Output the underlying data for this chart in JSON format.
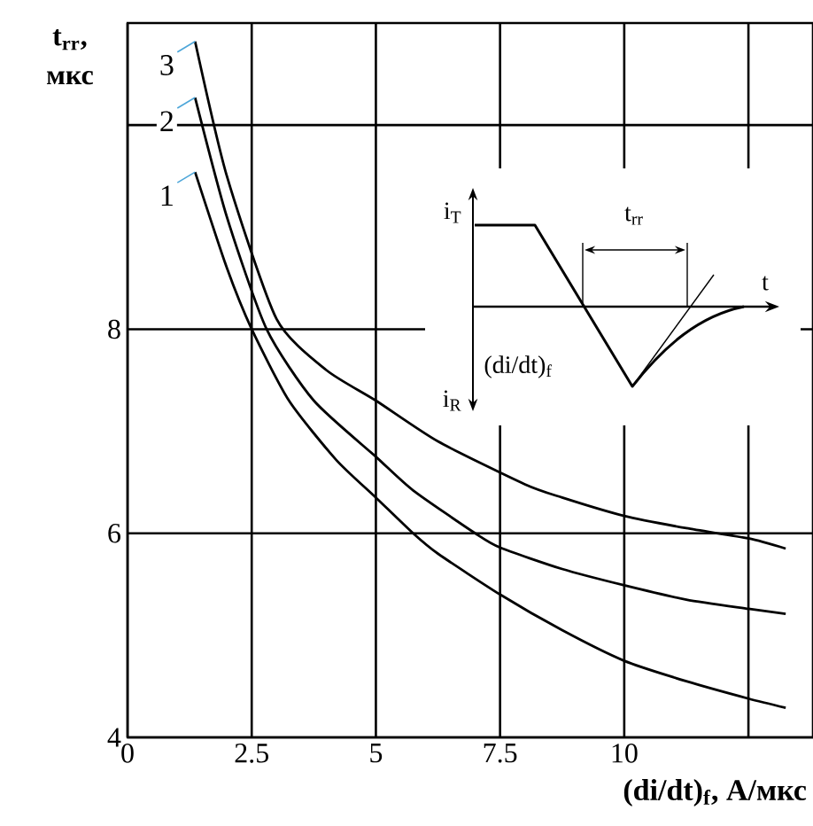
{
  "chart_data": {
    "type": "line",
    "xlabel": "(di/dt)$_{f}$, А/мкс",
    "ylabel": "t$_{rr}$, мкс",
    "xlim": [
      0,
      13.8
    ],
    "ylim": [
      4,
      11
    ],
    "xticks": [
      0,
      2.5,
      5,
      7.5,
      10,
      {
        "value": 12.5,
        "label": null
      }
    ],
    "yticks": [
      4,
      6,
      8,
      {
        "value": 10,
        "label": null
      }
    ],
    "grid": true,
    "legend": false,
    "marker": "none",
    "line_style": "solid",
    "series": [
      {
        "name": "1",
        "color": "#000000",
        "x": [
          1.36,
          2,
          2.5,
          3.25,
          4.2,
          5,
          5.75,
          6.25,
          7.5,
          8.75,
          10,
          11.25,
          12.5,
          13.25
        ],
        "values": [
          9.54,
          8.6,
          8.0,
          7.3,
          6.72,
          6.35,
          6.0,
          5.8,
          5.4,
          5.05,
          4.75,
          4.55,
          4.38,
          4.29
        ]
      },
      {
        "name": "2",
        "color": "#000000",
        "x": [
          1.36,
          2,
          2.8,
          3.75,
          5,
          5.75,
          7,
          7.5,
          8.75,
          10,
          11.25,
          12.5,
          13.25
        ],
        "values": [
          10.27,
          9.1,
          8.0,
          7.3,
          6.75,
          6.42,
          6.0,
          5.86,
          5.65,
          5.49,
          5.35,
          5.26,
          5.21
        ]
      },
      {
        "name": "3",
        "color": "#000000",
        "x": [
          1.36,
          2,
          3,
          4,
          5,
          6.25,
          8,
          8.75,
          10,
          11.25,
          12.5,
          13.25
        ],
        "values": [
          10.82,
          9.5,
          8.1,
          7.6,
          7.3,
          6.9,
          6.48,
          6.35,
          6.17,
          6.05,
          5.95,
          5.85
        ]
      }
    ],
    "annotations": [
      "i$_{T}$",
      "t$_{rr}$",
      "t",
      "i$_{R}$",
      "(di/dt)$_{f}$"
    ]
  }
}
